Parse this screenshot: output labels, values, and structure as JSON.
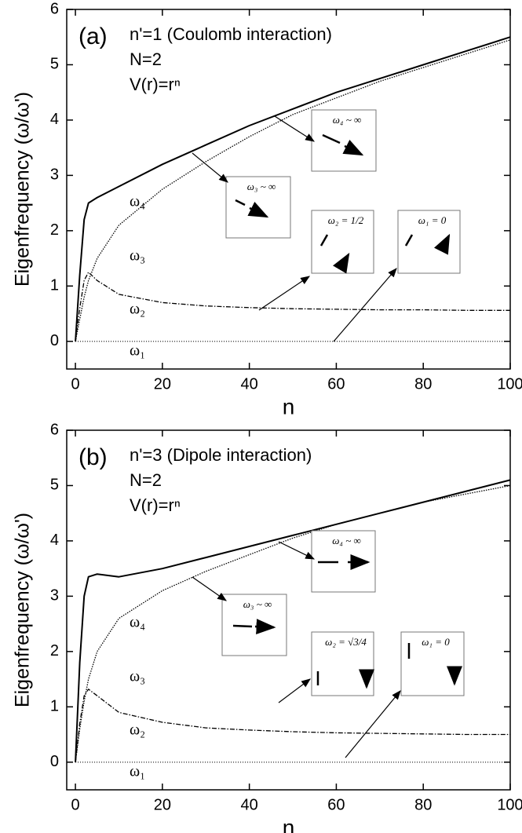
{
  "chart_data": [
    {
      "type": "line",
      "panel_label": "(a)",
      "annotations": [
        "n'=1 (Coulomb interaction)",
        "N=2",
        "V(r)=rⁿ"
      ],
      "x_label": "n",
      "y_label": "Eigenfrequency (ω/ω')",
      "x": [
        0,
        1,
        2,
        3,
        5,
        10,
        20,
        30,
        40,
        50,
        60,
        70,
        80,
        90,
        100
      ],
      "series": [
        {
          "name": "ω₄",
          "color": "#000000",
          "values": [
            0,
            1.2,
            2.2,
            2.5,
            2.6,
            2.8,
            3.2,
            3.55,
            3.9,
            4.2,
            4.5,
            4.75,
            5.0,
            5.25,
            5.5
          ]
        },
        {
          "name": "ω₃",
          "color": "#000000",
          "values": [
            0,
            0.4,
            0.8,
            1.1,
            1.5,
            2.1,
            2.75,
            3.25,
            3.7,
            4.1,
            4.4,
            4.7,
            4.95,
            5.2,
            5.45
          ]
        },
        {
          "name": "ω₂",
          "color": "#000000",
          "values": [
            0,
            0.6,
            1.1,
            1.25,
            1.1,
            0.85,
            0.7,
            0.64,
            0.61,
            0.59,
            0.58,
            0.57,
            0.57,
            0.56,
            0.56
          ]
        },
        {
          "name": "ω₁",
          "color": "#000000",
          "values": [
            0,
            0,
            0,
            0,
            0,
            0,
            0,
            0,
            0,
            0,
            0,
            0,
            0,
            0,
            0
          ]
        }
      ],
      "insets": [
        "ω₃ ~ ∞",
        "ω₄ ~ ∞",
        "ω₂ = 1/2",
        "ω₁ = 0"
      ],
      "xlim": [
        -2,
        100
      ],
      "xticks": [
        0,
        20,
        40,
        60,
        80,
        100
      ],
      "ylim": [
        -0.5,
        6
      ],
      "yticks": [
        0,
        1,
        2,
        3,
        4,
        5,
        6
      ]
    },
    {
      "type": "line",
      "panel_label": "(b)",
      "annotations": [
        "n'=3 (Dipole interaction)",
        "N=2",
        "V(r)=rⁿ"
      ],
      "x_label": "n",
      "y_label": "Eigenfrequency (ω/ω')",
      "x": [
        0,
        1,
        2,
        3,
        5,
        10,
        20,
        30,
        40,
        50,
        60,
        70,
        80,
        90,
        100
      ],
      "series": [
        {
          "name": "ω₄",
          "color": "#000000",
          "values": [
            0,
            1.8,
            3.0,
            3.35,
            3.4,
            3.35,
            3.5,
            3.7,
            3.9,
            4.1,
            4.3,
            4.5,
            4.7,
            4.9,
            5.1
          ]
        },
        {
          "name": "ω₃",
          "color": "#000000",
          "values": [
            0,
            0.6,
            1.1,
            1.5,
            2.0,
            2.6,
            3.1,
            3.45,
            3.75,
            4.05,
            4.3,
            4.5,
            4.7,
            4.85,
            5.0
          ]
        },
        {
          "name": "ω₂",
          "color": "#000000",
          "values": [
            0,
            0.7,
            1.2,
            1.32,
            1.2,
            0.9,
            0.72,
            0.62,
            0.58,
            0.55,
            0.53,
            0.52,
            0.51,
            0.5,
            0.5
          ]
        },
        {
          "name": "ω₁",
          "color": "#000000",
          "values": [
            0,
            0,
            0,
            0,
            0,
            0,
            0,
            0,
            0,
            0,
            0,
            0,
            0,
            0,
            0
          ]
        }
      ],
      "insets": [
        "ω₃ ~ ∞",
        "ω₄ ~ ∞",
        "ω₂ = √3/4",
        "ω₁ = 0"
      ],
      "xlim": [
        -2,
        100
      ],
      "xticks": [
        0,
        20,
        40,
        60,
        80,
        100
      ],
      "ylim": [
        -0.5,
        6
      ],
      "yticks": [
        0,
        1,
        2,
        3,
        4,
        5,
        6
      ]
    }
  ]
}
